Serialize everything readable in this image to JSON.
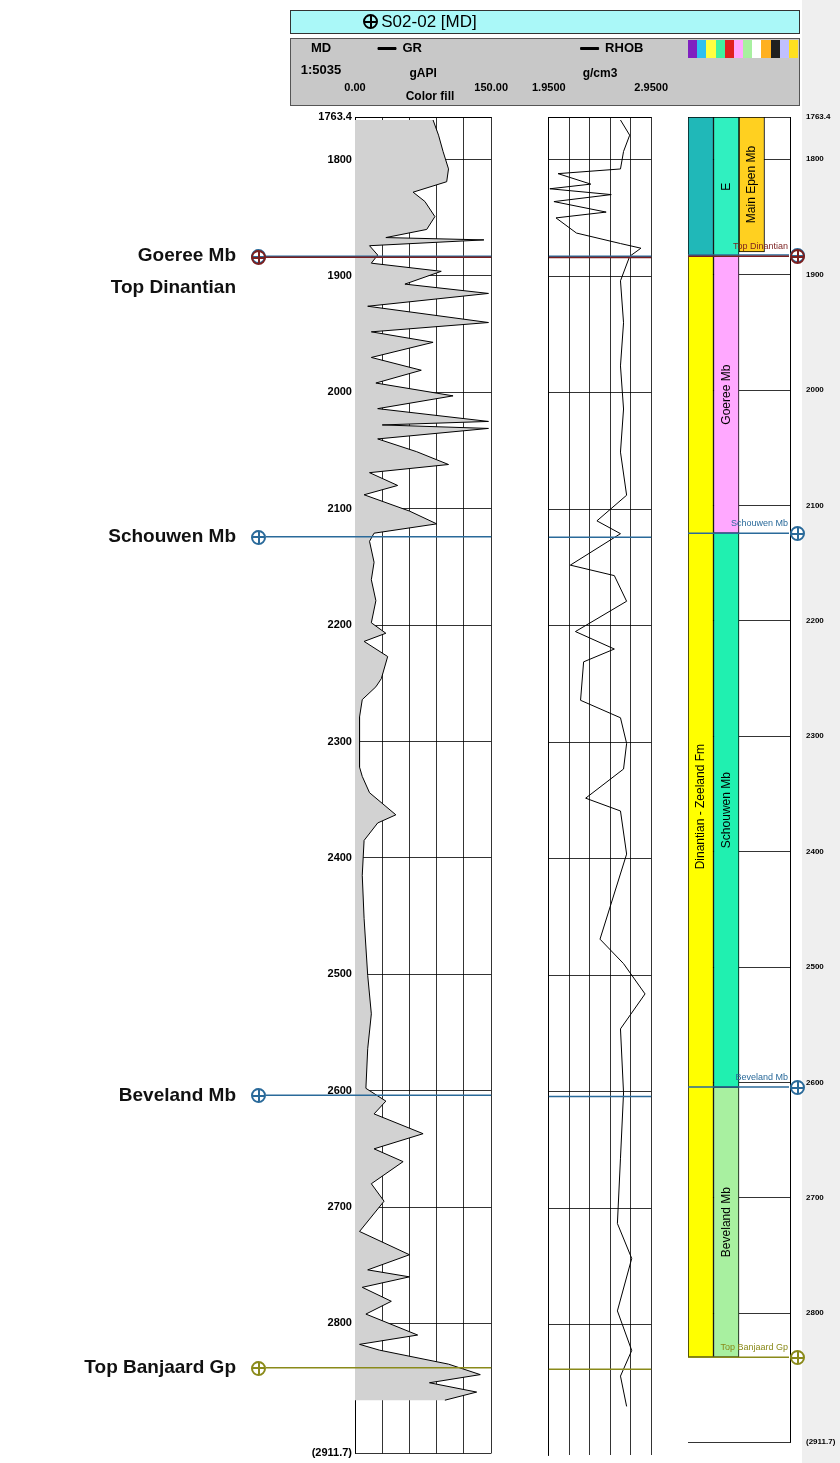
{
  "chart_data": [
    {
      "type": "area",
      "title": "S02-02 [MD]",
      "ylabel": "MD",
      "xlabel": "gAPI",
      "orientation": "horizontal",
      "annotations": [
        "1:5035",
        "Color fill"
      ],
      "xlim": [
        0,
        150
      ],
      "xticks": [
        {
          "value": 0,
          "label": "0.00"
        },
        {
          "value": 30,
          "label": null
        },
        {
          "value": 60,
          "label": null
        },
        {
          "value": 90,
          "label": null
        },
        {
          "value": 120,
          "label": null
        },
        {
          "value": 150,
          "label": "150.00"
        }
      ],
      "ylim": [
        2911.7,
        1763.4
      ],
      "yticks": [
        1763.4,
        1800,
        1900,
        2000,
        2100,
        2200,
        2300,
        2400,
        2500,
        2600,
        2700,
        2800,
        {
          "value": 2911.7,
          "label": "(2911.7)"
        }
      ],
      "grid": true,
      "legend": "top",
      "ref_lines": [
        {
          "axis": "y",
          "value": 1883,
          "label": "Goeree Mb",
          "color": "#2a6a9a"
        },
        {
          "axis": "y",
          "value": 1884,
          "label": "Top Dinantian",
          "color": "#7a1f1f"
        },
        {
          "axis": "y",
          "value": 2124,
          "label": "Schouwen Mb",
          "color": "#2a6a9a"
        },
        {
          "axis": "y",
          "value": 2604,
          "label": "Beveland Mb",
          "color": "#2a6a9a"
        },
        {
          "axis": "y",
          "value": 2838,
          "label": "Top Banjaard Gp",
          "color": "#8a8a1a"
        }
      ],
      "series": [
        {
          "name": "GR",
          "color": "#000000",
          "x": [
            1766,
            1779,
            1793,
            1808,
            1819,
            1828,
            1836,
            1849,
            1860,
            1867,
            1869,
            1874,
            1882,
            1889,
            1896,
            1907,
            1915,
            1926,
            1940,
            1948,
            1957,
            1970,
            1981,
            1992,
            2003,
            2014,
            2025,
            2028,
            2031,
            2040,
            2051,
            2062,
            2069,
            2080,
            2088,
            2102,
            2113,
            2121,
            2128,
            2146,
            2161,
            2179,
            2198,
            2207,
            2214,
            2227,
            2246,
            2253,
            2264,
            2279,
            2301,
            2322,
            2330,
            2344,
            2363,
            2370,
            2385,
            2415,
            2452,
            2501,
            2534,
            2564,
            2598,
            2609,
            2620,
            2637,
            2650,
            2661,
            2680,
            2695,
            2721,
            2741,
            2754,
            2760,
            2769,
            2781,
            2792,
            2810,
            2818,
            2823,
            2835,
            2844,
            2851,
            2859,
            2866
          ],
          "values": [
            86,
            92,
            97,
            103,
            101,
            64,
            77,
            88,
            79,
            34,
            142,
            16,
            25,
            18,
            95,
            55,
            147,
            14,
            147,
            18,
            86,
            18,
            73,
            23,
            108,
            25,
            147,
            30,
            147,
            25,
            68,
            103,
            16,
            47,
            10,
            60,
            90,
            21,
            16,
            21,
            18,
            23,
            18,
            34,
            10,
            36,
            29,
            23,
            8,
            5,
            5,
            5,
            8,
            16,
            45,
            25,
            10,
            8,
            10,
            14,
            18,
            14,
            12,
            34,
            21,
            75,
            21,
            53,
            18,
            32,
            5,
            60,
            14,
            60,
            8,
            40,
            12,
            69,
            5,
            27,
            103,
            138,
            82,
            134,
            99
          ]
        }
      ]
    },
    {
      "type": "line",
      "xlabel": "g/cm3",
      "orientation": "horizontal",
      "xlim": [
        1.95,
        2.95
      ],
      "xticks": [
        {
          "value": 1.95,
          "label": "1.9500"
        },
        {
          "value": 2.15,
          "label": null
        },
        {
          "value": 2.35,
          "label": null
        },
        {
          "value": 2.55,
          "label": null
        },
        {
          "value": 2.75,
          "label": null
        },
        {
          "value": 2.95,
          "label": "2.9500"
        }
      ],
      "ylim": [
        2911.7,
        1763.4
      ],
      "yticks": [
        1800,
        1900,
        2000,
        2100,
        2200,
        2300,
        2400,
        2500,
        2600,
        2700,
        2800
      ],
      "tick_labels": "x",
      "grid": true,
      "legend": "top",
      "ref_lines": [
        {
          "axis": "y",
          "value": 1883,
          "color": "#2a6a9a"
        },
        {
          "axis": "y",
          "value": 1884,
          "color": "#7a1f1f"
        },
        {
          "axis": "y",
          "value": 2124,
          "color": "#2a6a9a"
        },
        {
          "axis": "y",
          "value": 2604,
          "color": "#2a6a9a"
        },
        {
          "axis": "y",
          "value": 2838,
          "color": "#8a8a1a"
        }
      ],
      "series": [
        {
          "name": "RHOB",
          "color": "#000000",
          "x": [
            1766,
            1779,
            1793,
            1808,
            1812,
            1821,
            1825,
            1830,
            1836,
            1845,
            1850,
            1863,
            1872,
            1876,
            1883,
            1904,
            1940,
            1977,
            2014,
            2051,
            2088,
            2110,
            2121,
            2148,
            2157,
            2179,
            2205,
            2220,
            2231,
            2264,
            2279,
            2301,
            2323,
            2348,
            2359,
            2396,
            2469,
            2490,
            2516,
            2546,
            2601,
            2657,
            2713,
            2743,
            2788,
            2822,
            2844,
            2870
          ],
          "values": [
            2.65,
            2.74,
            2.68,
            2.65,
            2.04,
            2.36,
            1.96,
            2.56,
            2.0,
            2.51,
            2.02,
            2.22,
            2.65,
            2.85,
            2.74,
            2.65,
            2.68,
            2.65,
            2.68,
            2.65,
            2.71,
            2.42,
            2.65,
            2.16,
            2.59,
            2.71,
            2.21,
            2.59,
            2.29,
            2.26,
            2.65,
            2.71,
            2.68,
            2.31,
            2.65,
            2.71,
            2.45,
            2.68,
            2.89,
            2.65,
            2.68,
            2.65,
            2.62,
            2.76,
            2.62,
            2.76,
            2.65,
            2.71
          ]
        }
      ]
    },
    {
      "type": "bar",
      "categories": [
        null,
        null,
        null,
        null
      ],
      "ylim": [
        2911.7,
        1763.4
      ],
      "yticks": [
        1763.4,
        1800,
        1900,
        2000,
        2100,
        2200,
        2300,
        2400,
        2500,
        2600,
        2700,
        2800,
        {
          "value": 2911.7,
          "label": "(2911.7)"
        }
      ],
      "tick_labels": "y",
      "grid": "y",
      "ref_lines": [
        {
          "axis": "y",
          "value": 1883,
          "color": "#2a6a9a"
        },
        {
          "axis": "y",
          "value": 1884,
          "label": "Top Dinantian",
          "color": "#7a1f1f"
        },
        {
          "axis": "y",
          "value": 2124,
          "label": "Schouwen Mb",
          "color": "#2a6a9a"
        },
        {
          "axis": "y",
          "value": 2604,
          "label": "Beveland Mb",
          "color": "#2a6a9a"
        },
        {
          "axis": "y",
          "value": 2838,
          "label": "Top Banjaard Gp",
          "color": "#8a8a1a"
        }
      ],
      "series": [
        {
          "color": "#20b8b8",
          "base": [
            1763.4,
            null,
            null,
            null
          ],
          "values": [
            121,
            null,
            null,
            null
          ]
        },
        {
          "name": "Dinantian - Zeeland Fm",
          "color": "#ffff00",
          "base": [
            1884,
            null,
            null,
            null
          ],
          "values": [
            954,
            null,
            null,
            null
          ]
        },
        {
          "name": "E",
          "color": "#30f0c0",
          "base": [
            null,
            1763.4,
            null,
            null
          ],
          "values": [
            null,
            121,
            null,
            null
          ]
        },
        {
          "name": "Main Epen Mb",
          "color": "#ffd020",
          "base": [
            null,
            null,
            1763.4,
            null
          ],
          "values": [
            null,
            null,
            117,
            null
          ]
        },
        {
          "name": "Goeree Mb",
          "color": "#ffa8ff",
          "base": [
            null,
            1884,
            null,
            null
          ],
          "values": [
            null,
            240,
            null,
            null
          ]
        },
        {
          "name": "Schouwen Mb",
          "color": "#20f0b0",
          "base": [
            null,
            2124,
            null,
            null
          ],
          "values": [
            null,
            480,
            null,
            null
          ]
        },
        {
          "name": "Beveland Mb",
          "color": "#a8f0a0",
          "base": [
            null,
            2604,
            null,
            null
          ],
          "values": [
            null,
            234,
            null,
            null
          ]
        }
      ]
    }
  ]
}
